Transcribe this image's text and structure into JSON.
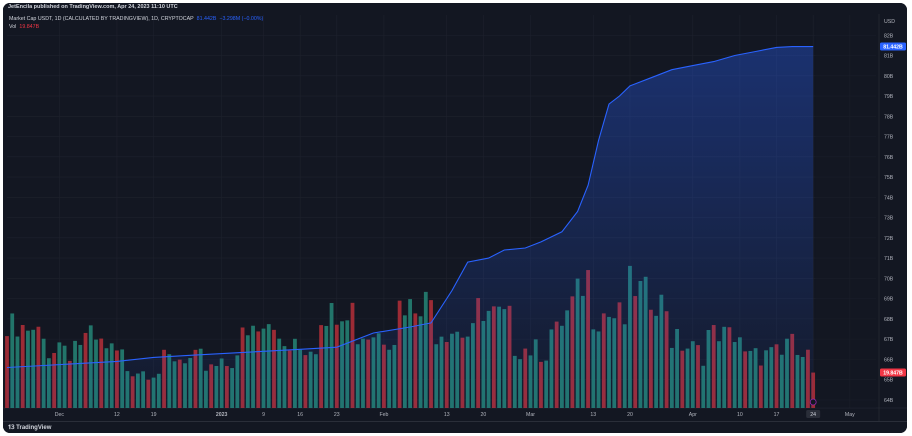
{
  "header": {
    "published": "JetEncila published on TradingView.com, Apr 24, 2023 11:10 UTC"
  },
  "legend": {
    "symbol": "Market Cap USDT, 1D (CALCULATED BY TRADINGVIEW), 1D, CRYPTOCAP",
    "last": "81.442B",
    "change": "−3.298M (−0.00%)",
    "vol_label": "Vol",
    "vol_value": "19.847B"
  },
  "footer": {
    "logo": "TradingView"
  },
  "colors": {
    "background": "#131722",
    "line": "#2962ff",
    "up_volume": "#22756a",
    "down_volume": "#9c2b35",
    "grid": "#1e222d",
    "axis_text": "#b2b5be",
    "price_tag": "#2962ff",
    "vol_tag": "#f23645"
  },
  "chart_data": {
    "type": "line",
    "series": [
      {
        "name": "Market Cap USDT",
        "x": [
          "2022-11-21",
          "2022-11-28",
          "2022-12-05",
          "2022-12-12",
          "2022-12-19",
          "2022-12-26",
          "2023-01-02",
          "2023-01-09",
          "2023-01-16",
          "2023-01-23",
          "2023-01-30",
          "2023-02-06",
          "2023-02-10",
          "2023-02-14",
          "2023-02-17",
          "2023-02-21",
          "2023-02-24",
          "2023-02-28",
          "2023-03-03",
          "2023-03-07",
          "2023-03-10",
          "2023-03-12",
          "2023-03-14",
          "2023-03-16",
          "2023-03-18",
          "2023-03-20",
          "2023-03-24",
          "2023-03-28",
          "2023-04-01",
          "2023-04-05",
          "2023-04-09",
          "2023-04-13",
          "2023-04-17",
          "2023-04-20",
          "2023-04-24"
        ],
        "values": [
          65.6,
          65.7,
          65.8,
          65.9,
          66.1,
          66.2,
          66.3,
          66.4,
          66.5,
          66.6,
          67.3,
          67.6,
          67.8,
          69.4,
          70.8,
          71.0,
          71.4,
          71.5,
          71.8,
          72.3,
          73.3,
          74.6,
          76.8,
          78.6,
          79.0,
          79.5,
          79.9,
          80.3,
          80.5,
          80.7,
          81.0,
          81.2,
          81.4,
          81.44,
          81.442
        ]
      },
      {
        "name": "Vol",
        "x": [
          "2022-11-21",
          "2022-11-28",
          "2022-12-05",
          "2022-12-12",
          "2022-12-19",
          "2022-12-26",
          "2023-01-02",
          "2023-01-09",
          "2023-01-16",
          "2023-01-23",
          "2023-01-30",
          "2023-02-06",
          "2023-02-13",
          "2023-02-20",
          "2023-02-27",
          "2023-03-06",
          "2023-03-13",
          "2023-03-20",
          "2023-03-27",
          "2023-04-03",
          "2023-04-10",
          "2023-04-17",
          "2023-04-24"
        ],
        "values": [
          33,
          30,
          31,
          22,
          20,
          19,
          24,
          35,
          33,
          38,
          42,
          40,
          45,
          38,
          34,
          30,
          55,
          48,
          40,
          30,
          28,
          30,
          19.847
        ]
      }
    ],
    "x_ticks": [
      "Dec",
      "12",
      "19",
      "2023",
      "9",
      "16",
      "23",
      "Feb",
      "13",
      "20",
      "Mar",
      "13",
      "20",
      "Apr",
      "10",
      "17",
      "24",
      "May"
    ],
    "y_ticks": [
      "USD",
      "82B",
      "81B",
      "80B",
      "79B",
      "78B",
      "77B",
      "76B",
      "75B",
      "74B",
      "73B",
      "72B",
      "71B",
      "70B",
      "69B",
      "68B",
      "67B",
      "66B",
      "65B",
      "64B"
    ],
    "ylim": [
      63.6,
      83.0
    ],
    "grid": true,
    "last_price_tag": "81.442B",
    "last_vol_tag": "19.847B",
    "x_end_label": "24"
  }
}
